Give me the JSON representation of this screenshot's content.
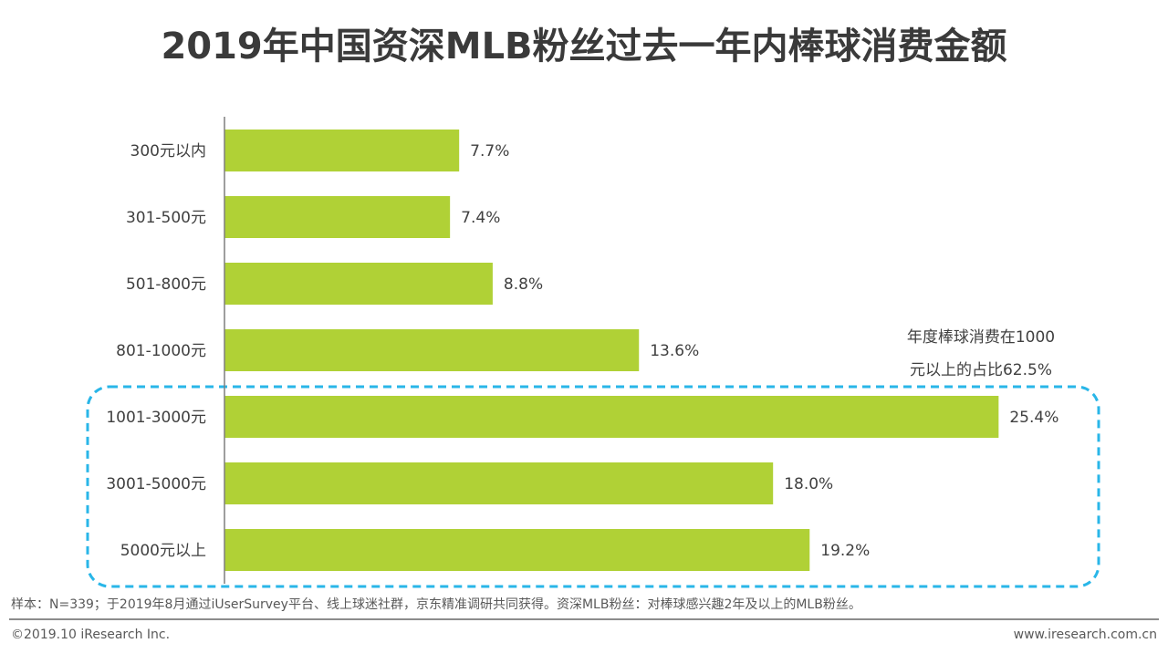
{
  "title": "2019年中国资深MLB粉丝过去一年内棒球消费金额",
  "chart_data": {
    "type": "bar",
    "orientation": "horizontal",
    "title": "2019年中国资深MLB粉丝过去一年内棒球消费金额",
    "categories": [
      "300元以内",
      "301-500元",
      "501-800元",
      "801-1000元",
      "1001-3000元",
      "3001-5000元",
      "5000元以上"
    ],
    "values": [
      7.7,
      7.4,
      8.8,
      13.6,
      25.4,
      18.0,
      19.2
    ],
    "data_labels": [
      "7.7%",
      "7.4%",
      "8.8%",
      "13.6%",
      "25.4%",
      "18.0%",
      "19.2%"
    ],
    "unit": "%",
    "bar_color": "#b0d136",
    "highlight_color": "#29b6e8",
    "highlighted_categories": [
      "1001-3000元",
      "3001-5000元",
      "5000元以上"
    ],
    "annotation": [
      "年度棒球消费在1000",
      "元以上的占比62.5%"
    ],
    "grid": false
  },
  "footer": {
    "note": "样本：N=339；于2019年8月通过iUserSurvey平台、线上球迷社群，京东精准调研共同获得。资深MLB粉丝：对棒球感兴趣2年及以上的MLB粉丝。",
    "copyright": "©2019.10 iResearch Inc.",
    "website": "www.iresearch.com.cn"
  }
}
